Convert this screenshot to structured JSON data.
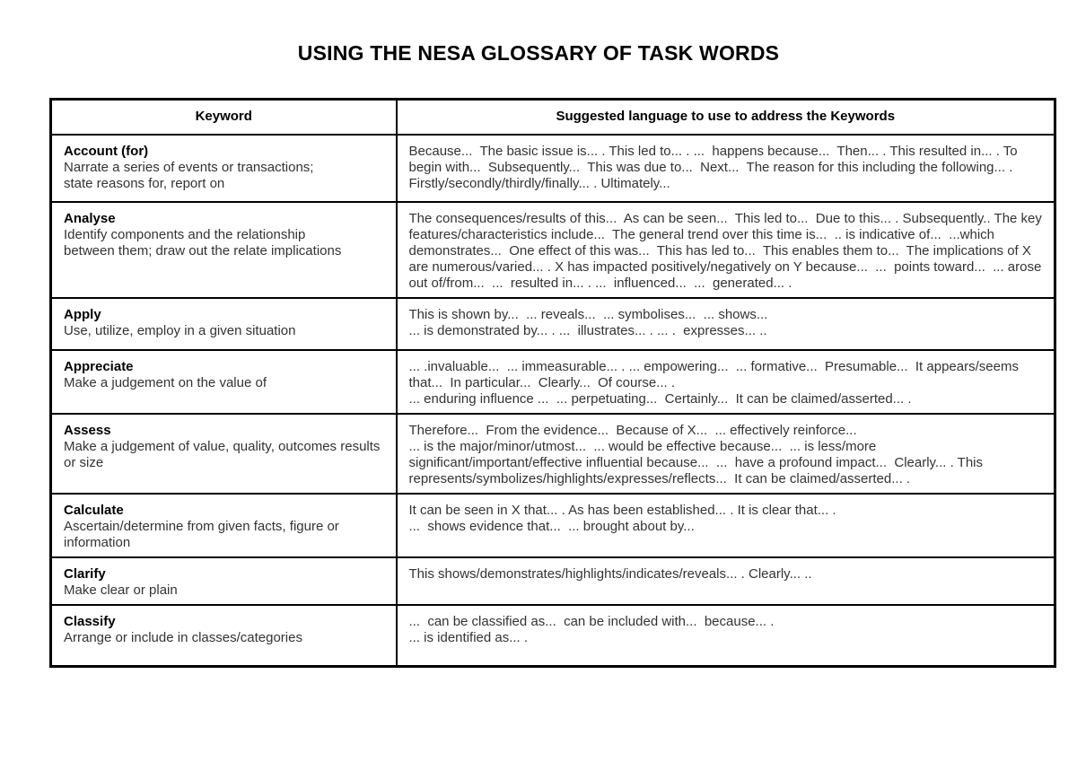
{
  "page": {
    "title": "USING THE NESA GLOSSARY OF TASK WORDS",
    "background_color": "#ffffff",
    "text_color": "#000000",
    "border_color": "#000000"
  },
  "table": {
    "headers": [
      "Keyword",
      "Suggested language to use to address the Keywords"
    ],
    "rows": [
      {
        "keyword": "Account (for)",
        "definition": [
          "Narrate a series of events or transactions;",
          "state reasons for, report on"
        ],
        "language": [
          "Because...  The basic issue is... . This led to... . ...  happens because...  Then... . This resulted in... . To begin with...  Subsequently...  This was due to...  Next...  The reason for this including the following... . Firstly/secondly/thirdly/finally... . Ultimately..."
        ]
      },
      {
        "keyword": "Analyse",
        "definition": [
          "Identify components and the relationship",
          "between them; draw out the relate implications"
        ],
        "language": [
          "The consequences/results of this...  As can be seen...  This led to...  Due to this... . Subsequently.. The key features/characteristics include...  The general trend over this time is...  .. is indicative of...  ...which demonstrates...  One effect of this was...  This has led to...  This enables them to...  The implications of X are numerous/varied... . X has impacted positively/negatively on Y because...  ...  points toward...  ... arose out of/from...  ...  resulted in... . ...  influenced...  ...  generated... ."
        ]
      },
      {
        "keyword": "Apply",
        "definition": [
          "Use, utilize, employ in a given situation"
        ],
        "language": [
          "This is shown by...  ... reveals...  ... symbolises...  ... shows...",
          "... is demonstrated by... . ...  illustrates... . ... .  expresses... .."
        ]
      },
      {
        "keyword": "Appreciate",
        "definition": [
          "Make a judgement on the value of"
        ],
        "language": [
          "... .invaluable...  ... immeasurable... . ... empowering...  ... formative...  Presumable...  It appears/seems that...  In particular...  Clearly...  Of course... .",
          "... enduring influence ...  ... perpetuating...  Certainly...  It can be claimed/asserted... ."
        ]
      },
      {
        "keyword": "Assess",
        "definition": [
          "Make a judgement of value, quality, outcomes results",
          "or size"
        ],
        "language": [
          "Therefore...  From the evidence...  Because of X...  ... effectively reinforce...",
          "... is the major/minor/utmost...  ... would be effective because...  ... is less/more significant/important/effective influential because...  ...  have a profound impact...  Clearly... . This represents/symbolizes/highlights/expresses/reflects...  It can be claimed/asserted... ."
        ]
      },
      {
        "keyword": "Calculate",
        "definition": [
          "Ascertain/determine from given facts, figure or",
          "information"
        ],
        "language": [
          "It can be seen in X that... . As has been established... . It is clear that... .",
          "...  shows evidence that...  ... brought about by..."
        ]
      },
      {
        "keyword": "Clarify",
        "definition": [
          "Make clear or plain"
        ],
        "language": [
          "This shows/demonstrates/highlights/indicates/reveals... . Clearly... .."
        ]
      },
      {
        "keyword": "Classify",
        "definition": [
          "Arrange or include in classes/categories"
        ],
        "language": [
          "...  can be classified as...  can be included with...  because... .",
          "... is identified as... ."
        ]
      }
    ]
  }
}
